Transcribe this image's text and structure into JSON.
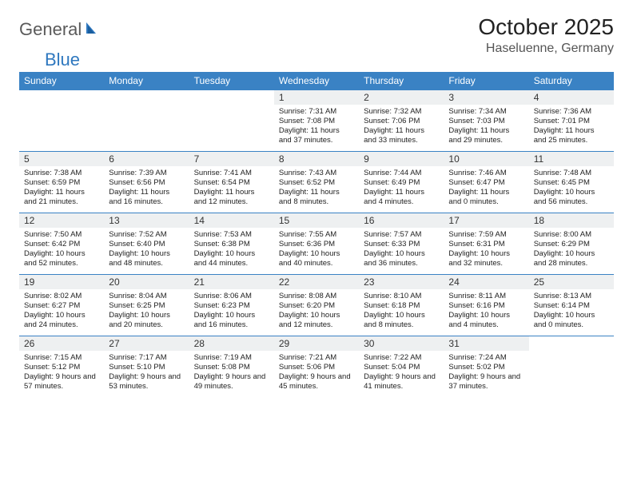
{
  "logo": {
    "text_a": "General",
    "text_b": "Blue"
  },
  "title": "October 2025",
  "location": "Haseluenne, Germany",
  "colors": {
    "header_bg": "#3a82c4",
    "header_text": "#ffffff",
    "daynum_bg": "#eef0f1",
    "row_border": "#3a82c4",
    "logo_gray": "#5a5a5a",
    "logo_blue": "#2f78bf",
    "page_bg": "#ffffff"
  },
  "day_headers": [
    "Sunday",
    "Monday",
    "Tuesday",
    "Wednesday",
    "Thursday",
    "Friday",
    "Saturday"
  ],
  "weeks": [
    [
      {
        "empty": true
      },
      {
        "empty": true
      },
      {
        "empty": true
      },
      {
        "n": "1",
        "sr": "7:31 AM",
        "ss": "7:08 PM",
        "dl": "11 hours and 37 minutes."
      },
      {
        "n": "2",
        "sr": "7:32 AM",
        "ss": "7:06 PM",
        "dl": "11 hours and 33 minutes."
      },
      {
        "n": "3",
        "sr": "7:34 AM",
        "ss": "7:03 PM",
        "dl": "11 hours and 29 minutes."
      },
      {
        "n": "4",
        "sr": "7:36 AM",
        "ss": "7:01 PM",
        "dl": "11 hours and 25 minutes."
      }
    ],
    [
      {
        "n": "5",
        "sr": "7:38 AM",
        "ss": "6:59 PM",
        "dl": "11 hours and 21 minutes."
      },
      {
        "n": "6",
        "sr": "7:39 AM",
        "ss": "6:56 PM",
        "dl": "11 hours and 16 minutes."
      },
      {
        "n": "7",
        "sr": "7:41 AM",
        "ss": "6:54 PM",
        "dl": "11 hours and 12 minutes."
      },
      {
        "n": "8",
        "sr": "7:43 AM",
        "ss": "6:52 PM",
        "dl": "11 hours and 8 minutes."
      },
      {
        "n": "9",
        "sr": "7:44 AM",
        "ss": "6:49 PM",
        "dl": "11 hours and 4 minutes."
      },
      {
        "n": "10",
        "sr": "7:46 AM",
        "ss": "6:47 PM",
        "dl": "11 hours and 0 minutes."
      },
      {
        "n": "11",
        "sr": "7:48 AM",
        "ss": "6:45 PM",
        "dl": "10 hours and 56 minutes."
      }
    ],
    [
      {
        "n": "12",
        "sr": "7:50 AM",
        "ss": "6:42 PM",
        "dl": "10 hours and 52 minutes."
      },
      {
        "n": "13",
        "sr": "7:52 AM",
        "ss": "6:40 PM",
        "dl": "10 hours and 48 minutes."
      },
      {
        "n": "14",
        "sr": "7:53 AM",
        "ss": "6:38 PM",
        "dl": "10 hours and 44 minutes."
      },
      {
        "n": "15",
        "sr": "7:55 AM",
        "ss": "6:36 PM",
        "dl": "10 hours and 40 minutes."
      },
      {
        "n": "16",
        "sr": "7:57 AM",
        "ss": "6:33 PM",
        "dl": "10 hours and 36 minutes."
      },
      {
        "n": "17",
        "sr": "7:59 AM",
        "ss": "6:31 PM",
        "dl": "10 hours and 32 minutes."
      },
      {
        "n": "18",
        "sr": "8:00 AM",
        "ss": "6:29 PM",
        "dl": "10 hours and 28 minutes."
      }
    ],
    [
      {
        "n": "19",
        "sr": "8:02 AM",
        "ss": "6:27 PM",
        "dl": "10 hours and 24 minutes."
      },
      {
        "n": "20",
        "sr": "8:04 AM",
        "ss": "6:25 PM",
        "dl": "10 hours and 20 minutes."
      },
      {
        "n": "21",
        "sr": "8:06 AM",
        "ss": "6:23 PM",
        "dl": "10 hours and 16 minutes."
      },
      {
        "n": "22",
        "sr": "8:08 AM",
        "ss": "6:20 PM",
        "dl": "10 hours and 12 minutes."
      },
      {
        "n": "23",
        "sr": "8:10 AM",
        "ss": "6:18 PM",
        "dl": "10 hours and 8 minutes."
      },
      {
        "n": "24",
        "sr": "8:11 AM",
        "ss": "6:16 PM",
        "dl": "10 hours and 4 minutes."
      },
      {
        "n": "25",
        "sr": "8:13 AM",
        "ss": "6:14 PM",
        "dl": "10 hours and 0 minutes."
      }
    ],
    [
      {
        "n": "26",
        "sr": "7:15 AM",
        "ss": "5:12 PM",
        "dl": "9 hours and 57 minutes."
      },
      {
        "n": "27",
        "sr": "7:17 AM",
        "ss": "5:10 PM",
        "dl": "9 hours and 53 minutes."
      },
      {
        "n": "28",
        "sr": "7:19 AM",
        "ss": "5:08 PM",
        "dl": "9 hours and 49 minutes."
      },
      {
        "n": "29",
        "sr": "7:21 AM",
        "ss": "5:06 PM",
        "dl": "9 hours and 45 minutes."
      },
      {
        "n": "30",
        "sr": "7:22 AM",
        "ss": "5:04 PM",
        "dl": "9 hours and 41 minutes."
      },
      {
        "n": "31",
        "sr": "7:24 AM",
        "ss": "5:02 PM",
        "dl": "9 hours and 37 minutes."
      },
      {
        "empty": true
      }
    ]
  ],
  "labels": {
    "sunrise": "Sunrise: ",
    "sunset": "Sunset: ",
    "daylight": "Daylight: "
  }
}
